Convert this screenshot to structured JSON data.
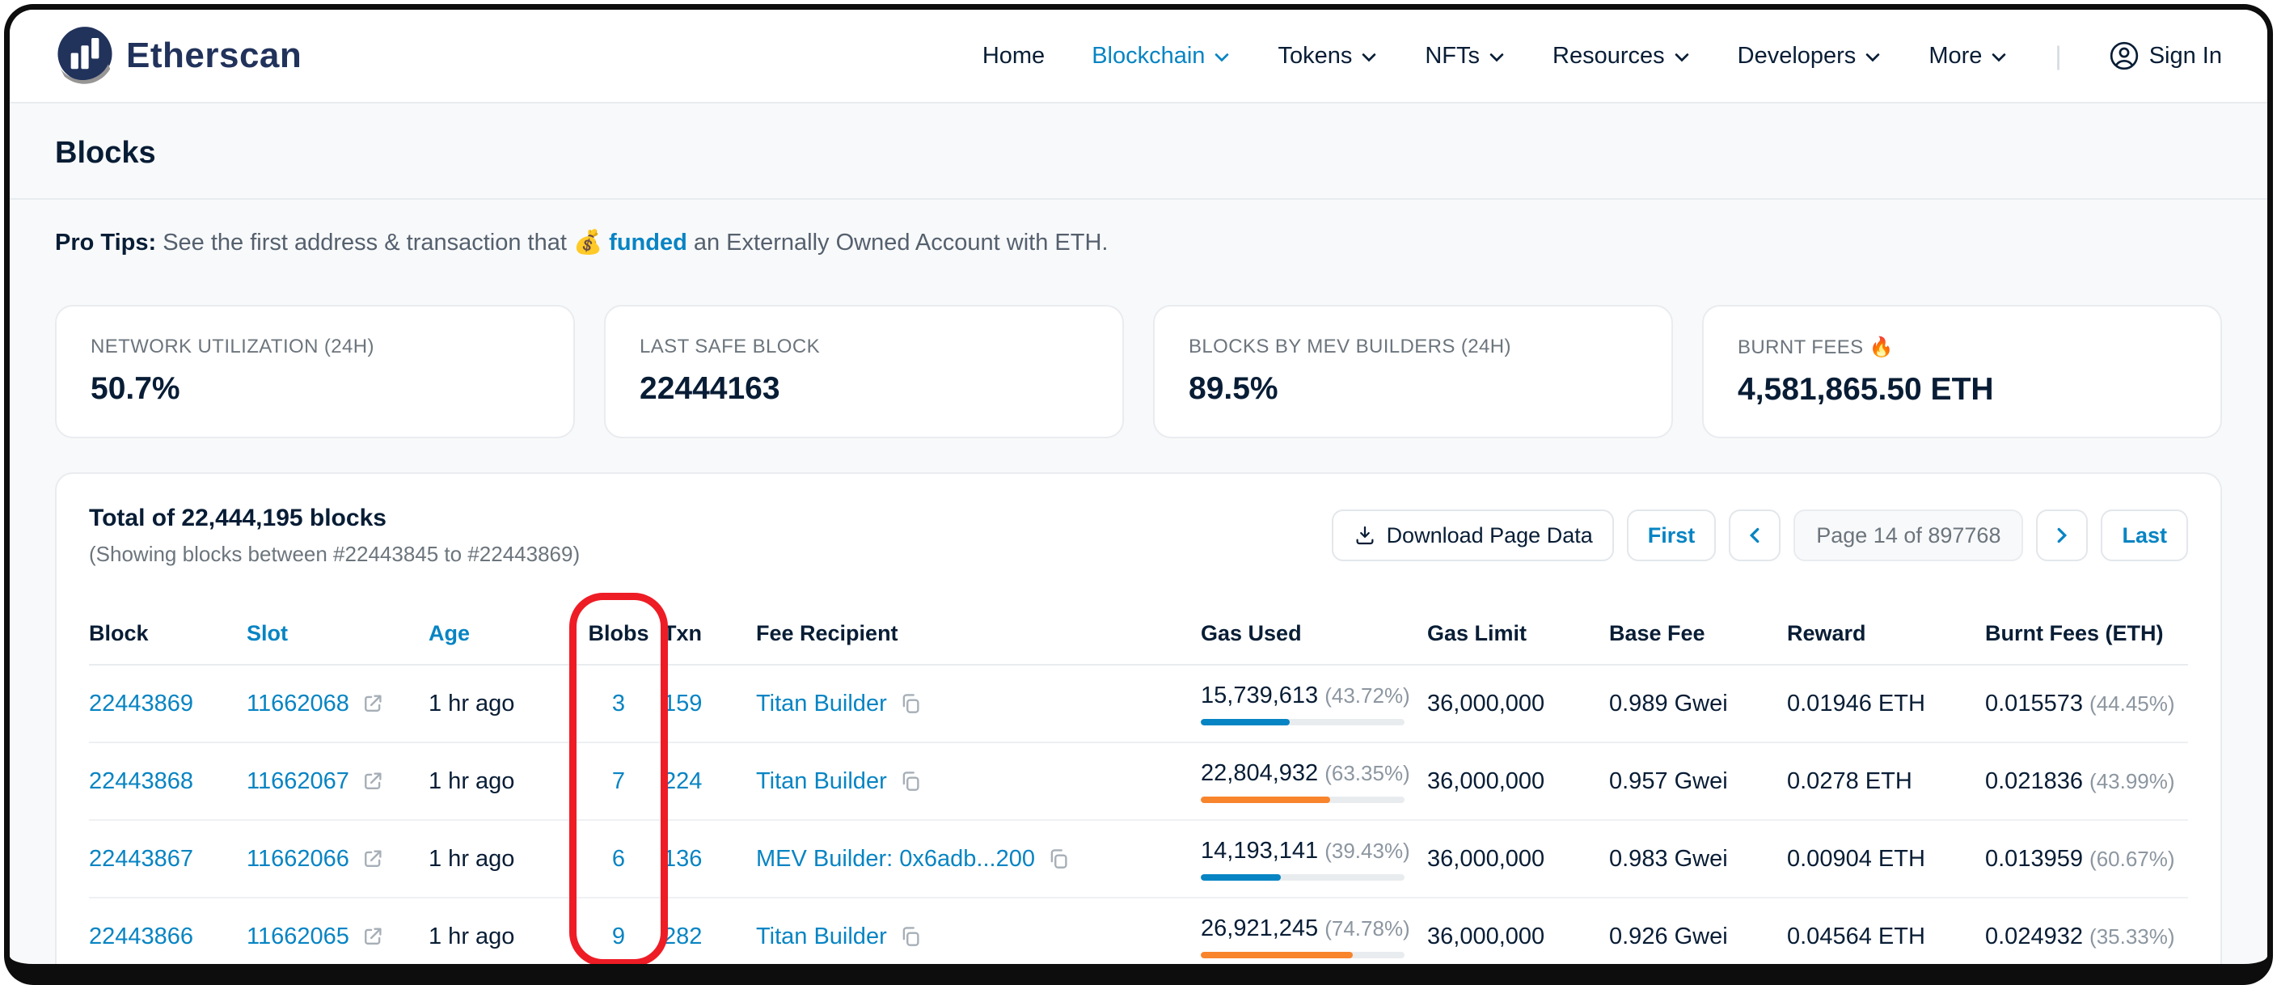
{
  "brand": {
    "name": "Etherscan"
  },
  "nav": {
    "items": [
      {
        "label": "Home",
        "dropdown": false,
        "active": false
      },
      {
        "label": "Blockchain",
        "dropdown": true,
        "active": true
      },
      {
        "label": "Tokens",
        "dropdown": true,
        "active": false
      },
      {
        "label": "NFTs",
        "dropdown": true,
        "active": false
      },
      {
        "label": "Resources",
        "dropdown": true,
        "active": false
      },
      {
        "label": "Developers",
        "dropdown": true,
        "active": false
      },
      {
        "label": "More",
        "dropdown": true,
        "active": false
      }
    ],
    "sign_in": "Sign In"
  },
  "page": {
    "title": "Blocks"
  },
  "pro_tip": {
    "prefix": "Pro Tips:",
    "before_link": " See the first address & transaction that ",
    "emoji": "💰",
    "link": "funded",
    "after_link": " an Externally Owned Account with ETH."
  },
  "stats": [
    {
      "label": "NETWORK UTILIZATION (24H)",
      "value": "50.7%"
    },
    {
      "label": "LAST SAFE BLOCK",
      "value": "22444163"
    },
    {
      "label": "BLOCKS BY MEV BUILDERS (24H)",
      "value": "89.5%"
    },
    {
      "label": "BURNT FEES 🔥",
      "value": "4,581,865.50 ETH"
    }
  ],
  "table": {
    "total_line": "Total of 22,444,195 blocks",
    "showing_line": "(Showing blocks between #22443845 to #22443869)",
    "download_label": "Download Page Data",
    "pagination": {
      "first": "First",
      "page": "Page 14 of 897768",
      "last": "Last"
    },
    "headers": [
      "Block",
      "Slot",
      "Age",
      "Blobs",
      "Txn",
      "Fee Recipient",
      "Gas Used",
      "Gas Limit",
      "Base Fee",
      "Reward",
      "Burnt Fees (ETH)"
    ],
    "rows": [
      {
        "block": "22443869",
        "slot": "11662068",
        "age": "1 hr ago",
        "blobs": "3",
        "txn": "159",
        "fee_recipient": "Titan Builder",
        "gas_used": "15,739,613",
        "gas_used_pct": "(43.72%)",
        "gas_pct": 43.72,
        "bar_color": "blue",
        "gas_limit": "36,000,000",
        "base_fee": "0.989 Gwei",
        "reward": "0.01946 ETH",
        "burnt": "0.015573",
        "burnt_pct": "(44.45%)"
      },
      {
        "block": "22443868",
        "slot": "11662067",
        "age": "1 hr ago",
        "blobs": "7",
        "txn": "224",
        "fee_recipient": "Titan Builder",
        "gas_used": "22,804,932",
        "gas_used_pct": "(63.35%)",
        "gas_pct": 63.35,
        "bar_color": "orange",
        "gas_limit": "36,000,000",
        "base_fee": "0.957 Gwei",
        "reward": "0.0278 ETH",
        "burnt": "0.021836",
        "burnt_pct": "(43.99%)"
      },
      {
        "block": "22443867",
        "slot": "11662066",
        "age": "1 hr ago",
        "blobs": "6",
        "txn": "136",
        "fee_recipient": "MEV Builder: 0x6adb...200",
        "gas_used": "14,193,141",
        "gas_used_pct": "(39.43%)",
        "gas_pct": 39.43,
        "bar_color": "blue",
        "gas_limit": "36,000,000",
        "base_fee": "0.983 Gwei",
        "reward": "0.00904 ETH",
        "burnt": "0.013959",
        "burnt_pct": "(60.67%)"
      },
      {
        "block": "22443866",
        "slot": "11662065",
        "age": "1 hr ago",
        "blobs": "9",
        "txn": "282",
        "fee_recipient": "Titan Builder",
        "gas_used": "26,921,245",
        "gas_used_pct": "(74.78%)",
        "gas_pct": 74.78,
        "bar_color": "orange",
        "gas_limit": "36,000,000",
        "base_fee": "0.926 Gwei",
        "reward": "0.04564 ETH",
        "burnt": "0.024932",
        "burnt_pct": "(35.33%)"
      }
    ]
  },
  "colors": {
    "accent_blue": "#0784c3",
    "bar_orange": "#f8842c",
    "annotation_red": "#ee1c25",
    "brand_navy": "#21325b"
  }
}
